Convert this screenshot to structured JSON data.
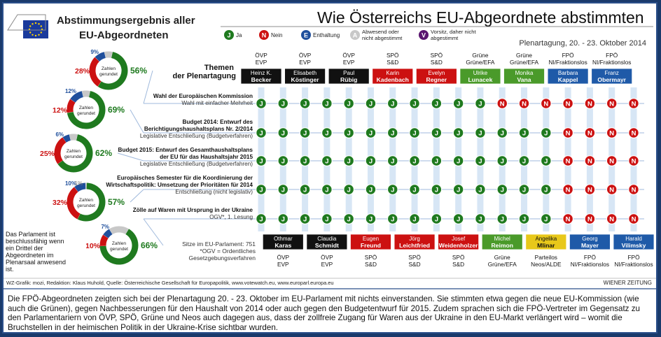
{
  "header": {
    "left_title_1": "Abstimmungsergebnis aller",
    "left_title_2": "EU-Abgeordneten",
    "main_title": "Wie Österreichs EU-Abgeordnete abstimmten",
    "session": "Plenartagung, 20. - 23. Oktober 2014"
  },
  "legend": [
    {
      "code": "J",
      "label": "Ja",
      "color": "#1f7a1f"
    },
    {
      "code": "N",
      "label": "Nein",
      "color": "#cc1111"
    },
    {
      "code": "E",
      "label": "Enthaltung",
      "color": "#1f4f9c"
    },
    {
      "code": "A",
      "label": "Abwesend oder nicht abgestimmt",
      "color": "#c8c8c8"
    },
    {
      "code": "V",
      "label": "Vorsitz, daher nicht abgestimmt",
      "color": "#5a1670"
    }
  ],
  "themes_header": "Themen der Plenartagung",
  "mep_top": [
    {
      "party": "ÖVP",
      "group": "EVP",
      "name": "Heinz K. Becker",
      "color": "#111111"
    },
    {
      "party": "ÖVP",
      "group": "EVP",
      "name": "Elisabeth Köstinger",
      "color": "#111111"
    },
    {
      "party": "ÖVP",
      "group": "EVP",
      "name": "Paul Rübig",
      "color": "#111111"
    },
    {
      "party": "SPÖ",
      "group": "S&D",
      "name": "Karin Kadenbach",
      "color": "#cc1111"
    },
    {
      "party": "SPÖ",
      "group": "S&D",
      "name": "Evelyn Regner",
      "color": "#cc1111"
    },
    {
      "party": "Grüne",
      "group": "Grüne/EFA",
      "name": "Ulrike Lunacek",
      "color": "#4a9a2a"
    },
    {
      "party": "Grüne",
      "group": "Grüne/EFA",
      "name": "Monika Vana",
      "color": "#4a9a2a"
    },
    {
      "party": "FPÖ",
      "group": "NI/Fraktionslos",
      "name": "Barbara Kappel",
      "color": "#1f5aa8"
    },
    {
      "party": "FPÖ",
      "group": "NI/Fraktionslos",
      "name": "Franz Obermayr",
      "color": "#1f5aa8"
    }
  ],
  "mep_bottom": [
    {
      "party": "ÖVP",
      "group": "EVP",
      "name": "Othmar Karas",
      "color": "#111111"
    },
    {
      "party": "ÖVP",
      "group": "EVP",
      "name": "Claudia Schmidt",
      "color": "#111111"
    },
    {
      "party": "SPÖ",
      "group": "S&D",
      "name": "Eugen Freund",
      "color": "#cc1111"
    },
    {
      "party": "SPÖ",
      "group": "S&D",
      "name": "Jörg Leichtfried",
      "color": "#cc1111"
    },
    {
      "party": "SPÖ",
      "group": "S&D",
      "name": "Josef Weidenholzer",
      "color": "#cc1111"
    },
    {
      "party": "Grüne",
      "group": "Grüne/EFA",
      "name": "Michel Reimon",
      "color": "#4a9a2a"
    },
    {
      "party": "Parteilos",
      "group": "Neos/ALDE",
      "name": "Angelika Mlinar",
      "color": "#e8c81a"
    },
    {
      "party": "FPÖ",
      "group": "NI/Fraktionslos",
      "name": "Georg Mayer",
      "color": "#1f5aa8"
    },
    {
      "party": "FPÖ",
      "group": "NI/Fraktionslos",
      "name": "Harald Vilimsky",
      "color": "#1f5aa8"
    }
  ],
  "topics": [
    {
      "title": [
        "Wahl der Europäischen Kommission"
      ],
      "sub": "Wahl mit einfacher Mehrheit",
      "votes": "JJJJJJJJJJJNNNNNNN",
      "donut": {
        "yes": 56,
        "no": 28,
        "abst": 9,
        "absent": 7
      },
      "labels": [
        "28%",
        "9%",
        "56%"
      ]
    },
    {
      "title": [
        "Budget 2014: Entwurf des",
        "Berichtigungshaushaltsplans Nr. 2/2014"
      ],
      "sub": "Legislative Entschließung (Budgetverfahren)",
      "votes": "JJJJJJJJJJJJJJNNNN",
      "donut": {
        "yes": 69,
        "no": 12,
        "abst": 12,
        "absent": 7
      },
      "labels": [
        "12%",
        "12%",
        "69%"
      ]
    },
    {
      "title": [
        "Budget 2015: Entwurf des Gesamthaushaltsplans",
        "der EU für das Haushaltsjahr 2015"
      ],
      "sub": "Legislative Entschließung (Budgetverfahren)",
      "votes": "JJJJJJJJJJJJJJNNNN",
      "donut": {
        "yes": 62,
        "no": 25,
        "abst": 6,
        "absent": 7
      },
      "labels": [
        "25%",
        "6%",
        "62%"
      ]
    },
    {
      "title": [
        "Europäisches Semester für die Koordinierung der",
        "Wirtschaftspolitik: Umsetzung der Prioritäten für 2014"
      ],
      "sub": "Entschließung (nicht legislativ)",
      "votes": "JJJJJJJJJJJJJJNNNN",
      "donut": {
        "yes": 57,
        "no": 32,
        "abst": 10,
        "absent": 1
      },
      "labels": [
        "32%",
        "10%",
        "57%",
        "1%"
      ]
    },
    {
      "title": [
        "Zölle auf Waren mit Ursprung in der Ukraine"
      ],
      "sub": "OGV*, 1. Lesung",
      "votes": "JJJJJJJJJJJJJJNNNN",
      "donut": {
        "yes": 66,
        "no": 10,
        "abst": 7,
        "absent": 17
      },
      "labels": [
        "10%",
        "7%",
        "66%"
      ]
    }
  ],
  "donut_center": "Zahlen gerundet",
  "seats": "Sitze im EU-Parlament: 751",
  "seats_note_1": "*OGV = Ordentliches",
  "seats_note_2": "Gesetzgebungsverfahren",
  "parliament_note": "Das Parlament ist beschlussfähig wenn ein Drittel der Abgeordneten im Plenarsaal anwesend ist.",
  "source": "WZ-Grafik: mozi, Redaktion: Klaus Huhold, Quelle: Österreichische Gesellschaft für Europapolitik, www.votewatch.eu, www.europarl.europa.eu",
  "brand": "WIENER ZEITUNG",
  "caption": "Die FPÖ-Abgeordneten zeigten sich bei der Plenartagung 20. - 23. Oktober im EU-Parlament mit nichts einverstanden. Sie stimmten etwa gegen die neue EU-Kommission (wie auch die Grünen), gegen Nachbesserungen für den Haushalt von 2014  oder auch gegen den Budgetentwurf für 2015. Zudem sprachen sich die FPÖ-Vertreter im Gegensatz zu den Parlamentariern von ÖVP, SPÖ, Grüne und Neos  auch dagegen aus, dass der zollfreie Zugang für Waren aus der Ukraine in den EU-Markt verlängert wird – womit die Bruchstellen in der heimischen Politik in der Ukraine-Krise sichtbar wurden.",
  "colors": {
    "yes": "#1f7a1f",
    "no": "#cc1111",
    "abst": "#1f4f9c",
    "absent": "#c8c8c8",
    "frame": "#2b4f8a"
  }
}
